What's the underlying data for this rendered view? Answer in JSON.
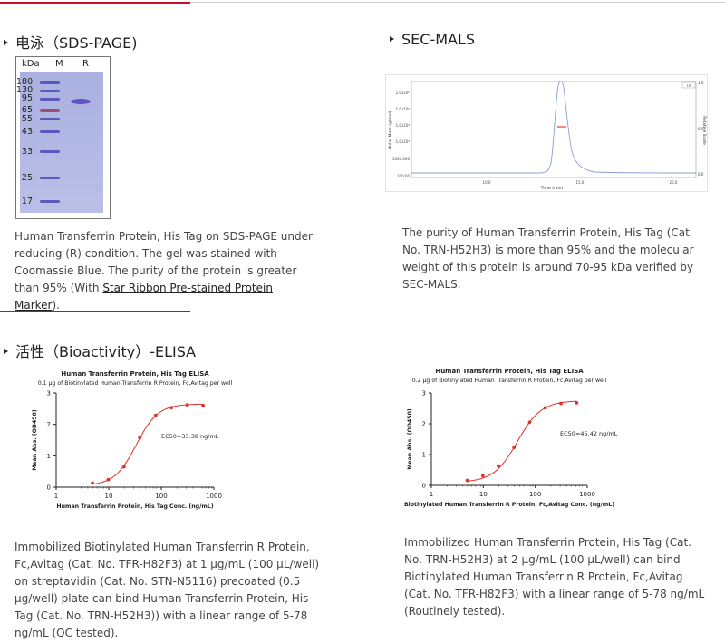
{
  "sds": {
    "title": "电泳（SDS-PAGE)",
    "gel": {
      "col_kda": "kDa",
      "col_m": "M",
      "col_r": "R",
      "markers": [
        "180",
        "130",
        "95",
        "65",
        "55",
        "43",
        "33",
        "25",
        "17"
      ]
    },
    "desc_main": "Human Transferrin Protein, His Tag on SDS-PAGE under reducing (R) condition. The gel was stained with Coomassie Blue. The purity of the protein is greater than 95% (With ",
    "desc_link": "Star Ribbon Pre-stained Protein Marker",
    "desc_end": ")."
  },
  "mals": {
    "title": "SEC-MALS",
    "desc": "The purity of Human Transferrin Protein, His Tag (Cat. No. TRN-H52H3) is more than 95% and the molecular weight of this protein is around 70-95 kDa verified by SEC-MALS.",
    "chart": {
      "ylabel": "Molar Mass (g/mol)",
      "y2label": "Relative Scale",
      "xlabel": "Time (min)",
      "yticks": [
        "1.0x10⁶",
        "1.0x10⁵",
        "1.0x10⁴",
        "1.0x10³",
        "1000.000",
        "100.00"
      ],
      "y2ticks": [
        "1.0",
        "0.5",
        "0.0"
      ],
      "xticks": [
        "10.0",
        "15.0",
        "20.0"
      ],
      "legend": "LS"
    }
  },
  "elisa": {
    "title": "活性（Bioactivity）-ELISA",
    "desc1": "Immobilized Biotinylated Human Transferrin R Protein, Fc,Avitag (Cat. No. TFR-H82F3) at 1 μg/mL (100 μL/well) on streptavidin (Cat. No. STN-N5116) precoated (0.5 μg/well) plate can bind Human Transferrin Protein, His Tag (Cat. No. TRN-H52H3)) with a linear range of 5-78 ng/mL (QC tested).",
    "desc2": "Immobilized Human Transferrin Protein, His Tag (Cat. No. TRN-H52H3) at 2 μg/mL (100 μL/well) can bind Biotinylated Human Transferrin R Protein, Fc,Avitag (Cat. No. TFR-H82F3) with a linear range of 5-78 ng/mL (Routinely tested)."
  },
  "chart_data": [
    {
      "type": "line",
      "title": "Human Transferrin Protein, His Tag ELISA",
      "subtitle": "0.1 μg of Biotinylated Human Transferrin R Protein, Fc,Avitag per well",
      "xlabel": "Human Transferrin Protein, His Tag Conc. (ng/mL)",
      "ylabel": "Mean Abs. (OD450)",
      "xscale": "log",
      "xlim": [
        1,
        1000
      ],
      "ylim": [
        0,
        3
      ],
      "xticks": [
        "1",
        "10",
        "100",
        "1000"
      ],
      "yticks": [
        "0",
        "1",
        "2",
        "3"
      ],
      "annotation": "EC50=33.38 ng/mL",
      "ec50": 33.38,
      "top": 2.65,
      "bottom": 0.05,
      "hill": 2.1,
      "series": [
        {
          "color": "#e0302a",
          "x": [
            4.9,
            9.8,
            19.5,
            39,
            78,
            156,
            312,
            625
          ],
          "y": [
            0.13,
            0.24,
            0.65,
            1.58,
            2.29,
            2.53,
            2.62,
            2.6
          ]
        }
      ]
    },
    {
      "type": "line",
      "title": "Human Transferrin Protein, His Tag ELISA",
      "subtitle": "0.2 μg of Biotinylated Human Transferrin R Protein, Fc,Avitag per well",
      "xlabel": "Biotinylated Human Transferrin R Protein, Fc,Avitag Conc. (ng/mL)",
      "ylabel": "Mean Abs. (OD450)",
      "xscale": "log",
      "xlim": [
        1,
        1000
      ],
      "ylim": [
        0,
        3
      ],
      "xticks": [
        "1",
        "10",
        "100",
        "1000"
      ],
      "yticks": [
        "0",
        "1",
        "2",
        "3"
      ],
      "annotation": "EC50=45.42 ng/mL",
      "ec50": 45.42,
      "top": 2.75,
      "bottom": 0.1,
      "hill": 1.9,
      "series": [
        {
          "color": "#e0302a",
          "x": [
            4.9,
            9.8,
            19.5,
            39,
            78,
            156,
            312,
            625
          ],
          "y": [
            0.16,
            0.31,
            0.63,
            1.23,
            2.05,
            2.52,
            2.66,
            2.68
          ]
        }
      ]
    }
  ]
}
